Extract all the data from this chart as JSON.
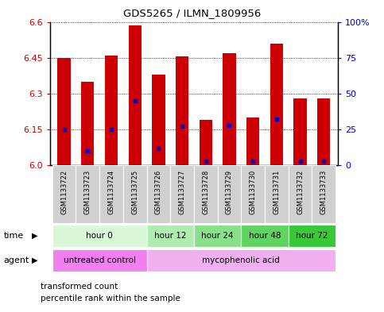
{
  "title": "GDS5265 / ILMN_1809956",
  "samples": [
    "GSM1133722",
    "GSM1133723",
    "GSM1133724",
    "GSM1133725",
    "GSM1133726",
    "GSM1133727",
    "GSM1133728",
    "GSM1133729",
    "GSM1133730",
    "GSM1133731",
    "GSM1133732",
    "GSM1133733"
  ],
  "transformed_counts": [
    6.45,
    6.35,
    6.46,
    6.585,
    6.38,
    6.455,
    6.19,
    6.47,
    6.2,
    6.51,
    6.28,
    6.28
  ],
  "percentile_ranks": [
    25,
    10,
    25,
    45,
    12,
    27,
    3,
    28,
    3,
    32,
    3,
    3
  ],
  "ylim": [
    6.0,
    6.6
  ],
  "yticks_left": [
    6.0,
    6.15,
    6.3,
    6.45,
    6.6
  ],
  "yticks_right": [
    0,
    25,
    50,
    75,
    100
  ],
  "bar_color": "#cc0000",
  "dot_color": "#0000cc",
  "time_colors": [
    "#d8f8d8",
    "#b0ecb0",
    "#88e088",
    "#60d460",
    "#38c838"
  ],
  "time_groups": [
    {
      "label": "hour 0",
      "start": 0,
      "end": 4
    },
    {
      "label": "hour 12",
      "start": 4,
      "end": 6
    },
    {
      "label": "hour 24",
      "start": 6,
      "end": 8
    },
    {
      "label": "hour 48",
      "start": 8,
      "end": 10
    },
    {
      "label": "hour 72",
      "start": 10,
      "end": 12
    }
  ],
  "agent_colors": [
    "#f080f0",
    "#f0b0f0"
  ],
  "agent_groups": [
    {
      "label": "untreated control",
      "start": 0,
      "end": 4
    },
    {
      "label": "mycophenolic acid",
      "start": 4,
      "end": 12
    }
  ],
  "legend_bar_label": "transformed count",
  "legend_dot_label": "percentile rank within the sample",
  "bar_color_red": "#cc0000",
  "dot_color_blue": "#0000cc",
  "left_tick_color": "#cc0000",
  "right_tick_color": "#0000cc",
  "bar_width": 0.55,
  "bar_bottom": 6.0,
  "sample_bg_color": "#d0d0d0",
  "plot_border_color": "#000000"
}
